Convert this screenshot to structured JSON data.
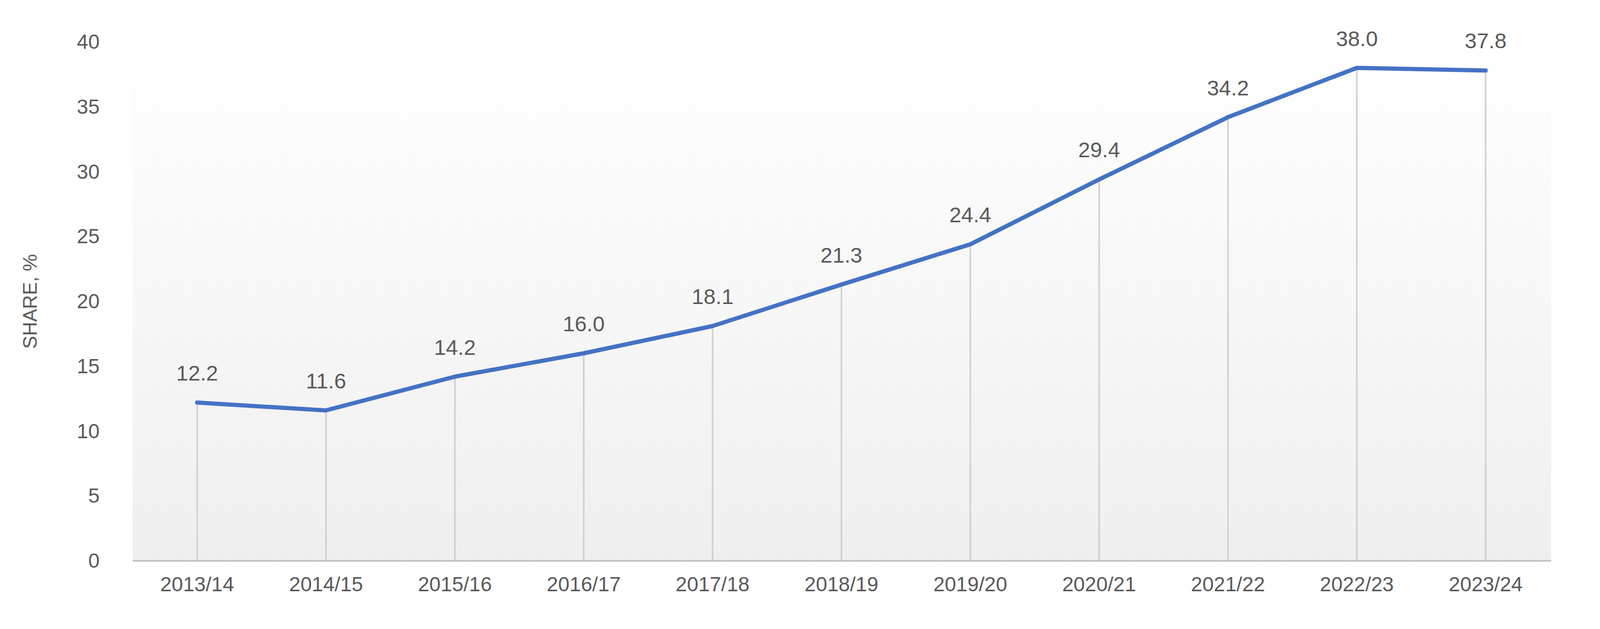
{
  "chart_data": {
    "type": "line",
    "y_label": "SHARE, %",
    "categories": [
      "2013/14",
      "2014/15",
      "2015/16",
      "2016/17",
      "2017/18",
      "2018/19",
      "2019/20",
      "2020/21",
      "2021/22",
      "2022/23",
      "2023/24"
    ],
    "values": [
      12.2,
      11.6,
      14.2,
      16.0,
      18.1,
      21.3,
      24.4,
      29.4,
      34.2,
      38.0,
      37.8
    ],
    "value_labels": [
      "12.2",
      "11.6",
      "14.2",
      "16.0",
      "18.1",
      "21.3",
      "24.4",
      "29.4",
      "34.2",
      "38.0",
      "37.8"
    ],
    "color": "#4472c4",
    "ylim": [
      0,
      40
    ],
    "yticks": [
      0,
      5,
      10,
      15,
      20,
      25,
      30,
      35,
      40
    ],
    "data_labels": true
  }
}
